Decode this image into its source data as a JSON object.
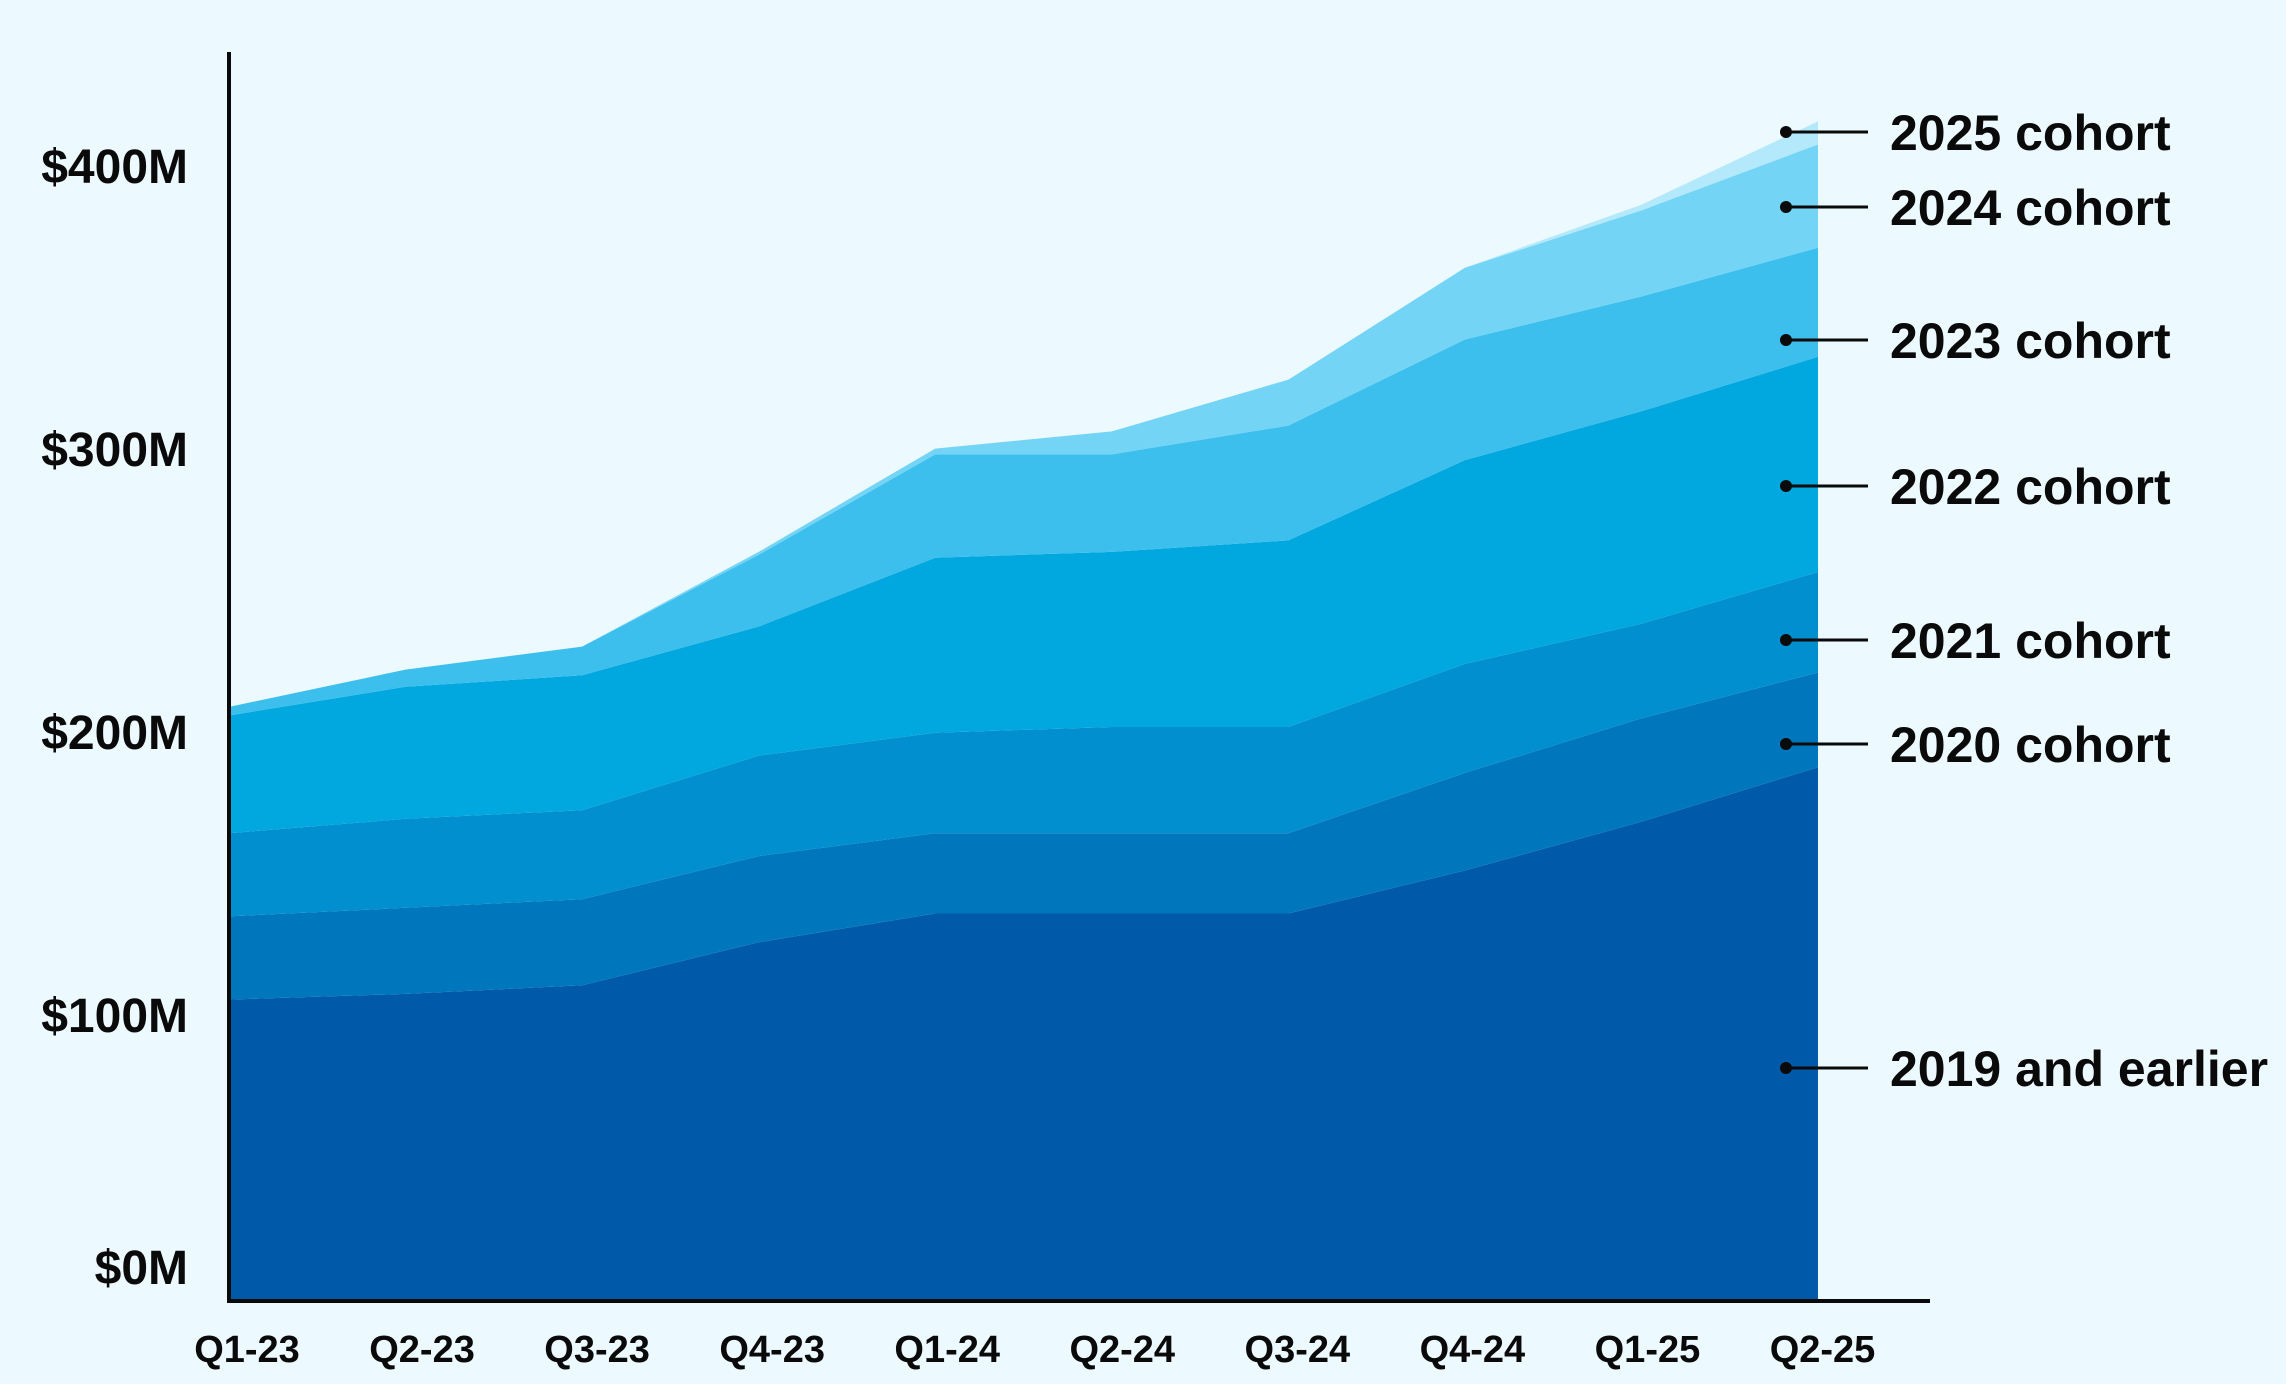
{
  "chart_data": {
    "type": "area",
    "stacked": true,
    "categories": [
      "Q1-23",
      "Q2-23",
      "Q3-23",
      "Q4-23",
      "Q1-24",
      "Q2-24",
      "Q3-24",
      "Q4-24",
      "Q1-25",
      "Q2-25"
    ],
    "y_ticks": [
      0,
      100,
      200,
      300,
      400
    ],
    "y_tick_labels": [
      "$0M",
      "$100M",
      "$200M",
      "$300M",
      "$400M"
    ],
    "ylim": [
      0,
      435
    ],
    "grid": false,
    "legend": "direct labels at right end",
    "series": [
      {
        "name": "2019 and earlier",
        "color": "#005aa9",
        "values": [
          105,
          107,
          110,
          125,
          135,
          135,
          135,
          150,
          167,
          186
        ]
      },
      {
        "name": "2020 cohort",
        "color": "#0076bc",
        "values": [
          29,
          30,
          30,
          30,
          28,
          28,
          28,
          34,
          36,
          33
        ]
      },
      {
        "name": "2021 cohort",
        "color": "#018fd0",
        "values": [
          29,
          31,
          31,
          35,
          35,
          37,
          37,
          38,
          33,
          35
        ]
      },
      {
        "name": "2022 cohort",
        "color": "#01a8e0",
        "values": [
          41,
          46,
          47,
          45,
          61,
          61,
          65,
          71,
          74,
          75
        ]
      },
      {
        "name": "2023 cohort",
        "color": "#3cbfec",
        "values": [
          3,
          6,
          10,
          25,
          36,
          34,
          40,
          42,
          40,
          38
        ]
      },
      {
        "name": "2024 cohort",
        "color": "#74d4f5",
        "values": [
          0,
          0,
          0,
          1,
          2,
          8,
          16,
          25,
          30,
          36
        ]
      },
      {
        "name": "2025 cohort",
        "color": "#b3e9fb",
        "values": [
          0,
          0,
          0,
          0,
          0,
          0,
          0,
          0,
          2,
          8
        ]
      }
    ]
  }
}
